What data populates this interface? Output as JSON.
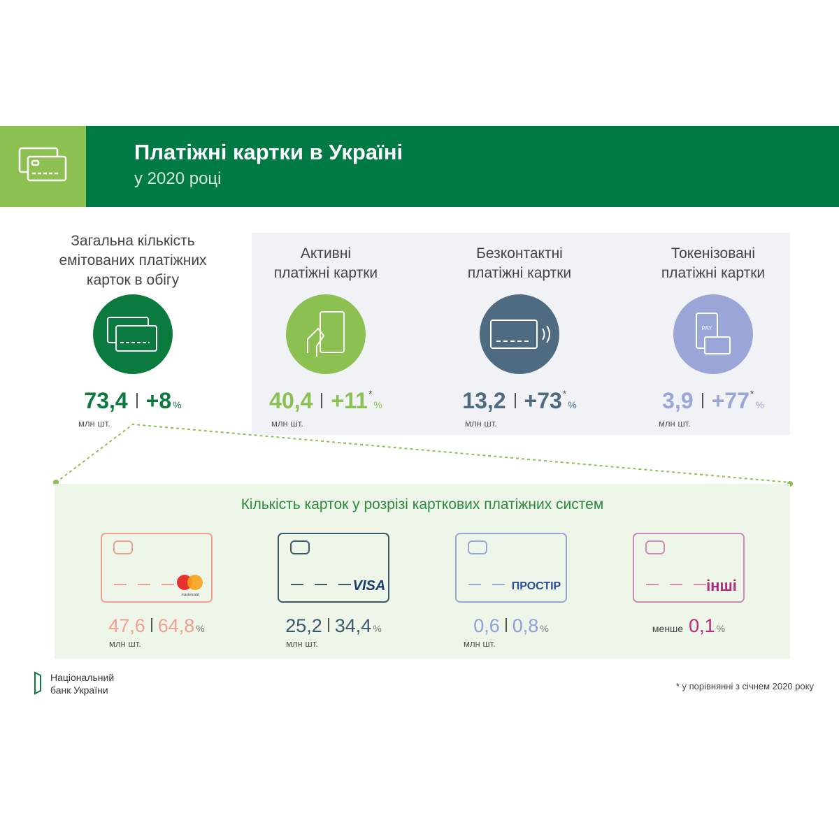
{
  "header": {
    "title": "Платіжні картки в Україні",
    "subtitle": "у 2020 році"
  },
  "total": {
    "label": [
      "Загальна кількість",
      "емітованих платіжних",
      "карток в обігу"
    ],
    "value": "73,4",
    "change": "+8",
    "percent": "%",
    "unit": "млн шт."
  },
  "types": [
    {
      "label": [
        "Активні",
        "платіжні картки"
      ],
      "value": "40,4",
      "change": "+11",
      "star": "*",
      "percent": "%",
      "unit": "млн шт."
    },
    {
      "label": [
        "Безконтактні",
        "платіжні картки"
      ],
      "value": "13,2",
      "change": "+73",
      "star": "*",
      "percent": "%",
      "unit": "млн шт."
    },
    {
      "label": [
        "Токенізовані",
        "платіжні картки"
      ],
      "icon_text": "PAY",
      "value": "3,9",
      "change": "+77",
      "star": "*",
      "percent": "%",
      "unit": "млн шт."
    }
  ],
  "systems": {
    "title": "Кількість карток у розрізі карткових платіжних систем",
    "items": [
      {
        "brand": "mastercard",
        "value": "47,6",
        "share": "64,8",
        "percent": "%",
        "unit": "млн шт."
      },
      {
        "brand": "VISA",
        "value": "25,2",
        "share": "34,4",
        "percent": "%",
        "unit": "млн шт."
      },
      {
        "brand": "ПРОСТІР",
        "value": "0,6",
        "share": "0,8",
        "percent": "%",
        "unit": "млн шт."
      },
      {
        "brand": "інші",
        "prefix": "менше",
        "share": "0,1",
        "percent": "%"
      }
    ]
  },
  "footer": {
    "bank": [
      "Національний",
      "банк України"
    ],
    "note": "* у порівнянні з січнем 2020 року"
  }
}
